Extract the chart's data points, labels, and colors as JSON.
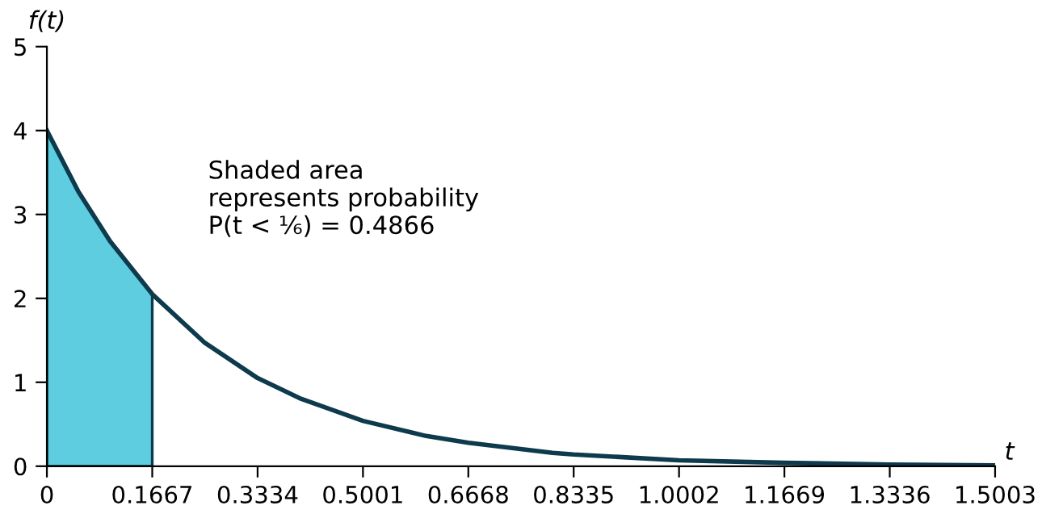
{
  "chart_data": {
    "type": "line",
    "xlabel": "t",
    "ylabel": "f(t)",
    "xlim": [
      0,
      1.5003
    ],
    "ylim": [
      0,
      5
    ],
    "xticks": [
      0,
      0.1667,
      0.3334,
      0.5001,
      0.6668,
      0.8335,
      1.0002,
      1.1669,
      1.3336,
      1.5003
    ],
    "yticks": [
      0,
      1,
      2,
      3,
      4,
      5
    ],
    "grid": false,
    "legend": false,
    "marker": "none",
    "line_style": "solid",
    "annotations": [
      "Shaded area\nrepresents probability\nP(t < ⅙) = 0.4866"
    ],
    "series": [
      {
        "type": "area",
        "color": "#5ecde0",
        "x": [
          0,
          0.05,
          0.1,
          0.1667
        ],
        "values": [
          4,
          3.27,
          2.68,
          2.05
        ]
      },
      {
        "color": "#0d3a4c",
        "x": [
          0,
          0.05,
          0.1,
          0.1667,
          0.25,
          0.3334,
          0.4,
          0.5001,
          0.6,
          0.6668,
          0.8,
          0.8335,
          1.0002,
          1.1669,
          1.3336,
          1.5003
        ],
        "values": [
          4,
          3.27,
          2.68,
          2.05,
          1.47,
          1.05,
          0.81,
          0.54,
          0.36,
          0.28,
          0.16,
          0.14,
          0.07,
          0.04,
          0.02,
          0.01
        ]
      }
    ]
  }
}
